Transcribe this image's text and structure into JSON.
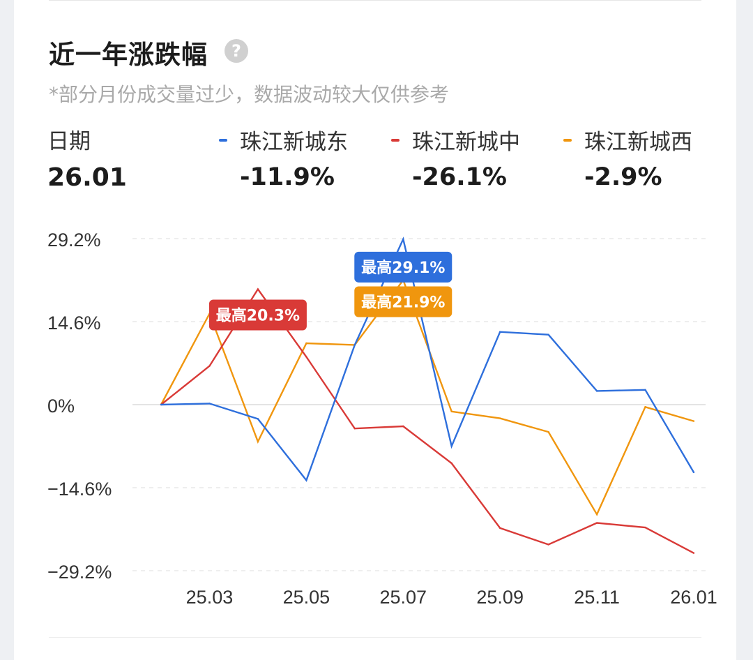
{
  "header": {
    "title": "近一年涨跌幅",
    "help_icon": "question-icon",
    "note": "*部分月份成交量过少，数据波动较大仅供参考"
  },
  "summary": {
    "date_label": "日期",
    "date_value": "26.01",
    "series": [
      {
        "name": "珠江新城东",
        "value": "-11.9%",
        "color": "#2e6fdc"
      },
      {
        "name": "珠江新城中",
        "value": "-26.1%",
        "color": "#d93a37"
      },
      {
        "name": "珠江新城西",
        "value": "-2.9%",
        "color": "#f0960e"
      }
    ]
  },
  "chart_data": {
    "type": "line",
    "x": [
      "25.02",
      "25.03",
      "25.04",
      "25.05",
      "25.06",
      "25.07",
      "25.08",
      "25.09",
      "25.10",
      "25.11",
      "25.12",
      "26.01"
    ],
    "x_tick_labels": [
      "25.03",
      "25.05",
      "25.07",
      "25.09",
      "25.11",
      "26.01"
    ],
    "y_tick_labels": [
      "29.2%",
      "14.6%",
      "0%",
      "−14.6%",
      "−29.2%"
    ],
    "ylim": [
      -29.2,
      29.2
    ],
    "y_ticks": [
      29.2,
      14.6,
      0,
      -14.6,
      -29.2
    ],
    "grid": true,
    "series": [
      {
        "name": "珠江新城东",
        "color": "#2e6fdc",
        "values": [
          0,
          0.2,
          -2.5,
          -13.3,
          10.5,
          29.1,
          -7.3,
          12.8,
          12.3,
          2.4,
          2.6,
          -11.9
        ]
      },
      {
        "name": "珠江新城中",
        "color": "#d93a37",
        "values": [
          0,
          6.8,
          20.3,
          8.4,
          -4.2,
          -3.8,
          -10.3,
          -21.7,
          -24.6,
          -20.8,
          -21.6,
          -26.1
        ]
      },
      {
        "name": "珠江新城西",
        "color": "#f0960e",
        "values": [
          0,
          16.0,
          -6.5,
          10.8,
          10.5,
          21.9,
          -1.2,
          -2.4,
          -4.8,
          -19.3,
          -0.4,
          -2.9
        ]
      }
    ],
    "annotations": [
      {
        "text": "最高29.1%",
        "color": "#2e6fdc",
        "series": "珠江新城东",
        "x": "25.07",
        "y": 29.1
      },
      {
        "text": "最高21.9%",
        "color": "#f0960e",
        "series": "珠江新城西",
        "x": "25.07",
        "y": 21.9
      },
      {
        "text": "最高20.3%",
        "color": "#d93a37",
        "series": "珠江新城中",
        "x": "25.04",
        "y": 20.3
      }
    ]
  }
}
